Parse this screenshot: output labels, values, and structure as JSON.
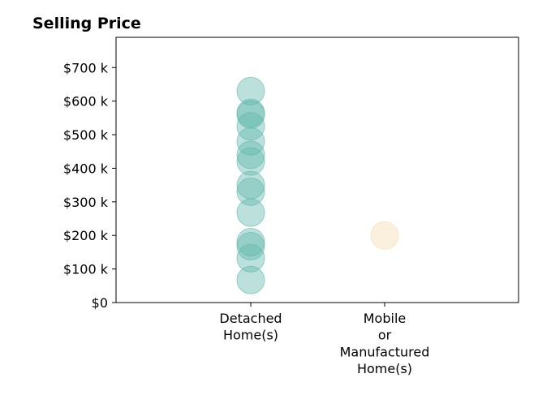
{
  "chart_data": {
    "type": "scatter",
    "title": "Selling Price",
    "xlabel": "",
    "ylabel": "",
    "categories": [
      [
        "Detached",
        "Home(s)"
      ],
      [
        "Mobile",
        "or",
        "Manufactured",
        "Home(s)"
      ]
    ],
    "y_ticks": [
      {
        "value": 0,
        "label": "$0"
      },
      {
        "value": 100000,
        "label": "$100 k"
      },
      {
        "value": 200000,
        "label": "$200 k"
      },
      {
        "value": 300000,
        "label": "$300 k"
      },
      {
        "value": 400000,
        "label": "$400 k"
      },
      {
        "value": 500000,
        "label": "$500 k"
      },
      {
        "value": 600000,
        "label": "$600 k"
      },
      {
        "value": 700000,
        "label": "$700 k"
      }
    ],
    "ylim": [
      0,
      790000
    ],
    "grid": false,
    "series": [
      {
        "category_index": 0,
        "color": "#5fb8ac",
        "values": [
          630000,
          565000,
          560000,
          525000,
          480000,
          440000,
          420000,
          350000,
          330000,
          268000,
          180000,
          168000,
          132000,
          67000
        ]
      },
      {
        "category_index": 1,
        "color": "#f3dcad",
        "values": [
          200000
        ]
      }
    ]
  }
}
